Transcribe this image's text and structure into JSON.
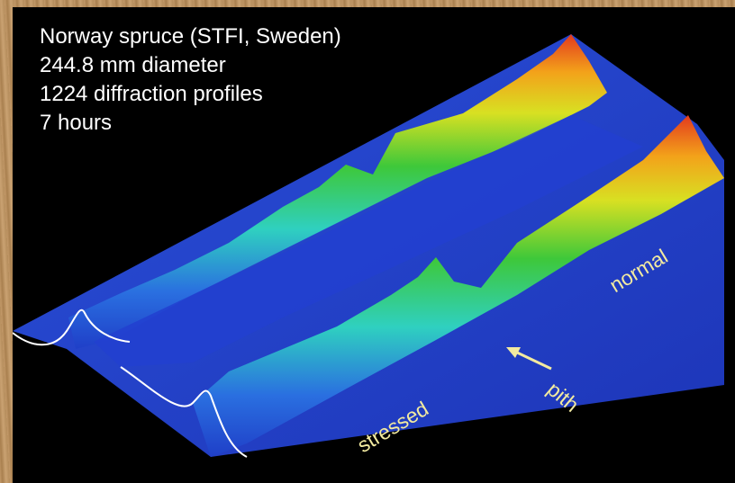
{
  "caption": {
    "line1": "Norway spruce (STFI, Sweden)",
    "line2": "244.8 mm diameter",
    "line3": "1224 diffraction profiles",
    "line4": "7 hours"
  },
  "labels": {
    "normal": "normal",
    "pith": "pith",
    "stressed": "stressed"
  },
  "colors": {
    "background": "#000000",
    "low": "#1f3fc8",
    "mid": "#2fd0c0",
    "high": "#3ec83a",
    "peak": "#e33a1e",
    "label": "#f2eaa0"
  }
}
